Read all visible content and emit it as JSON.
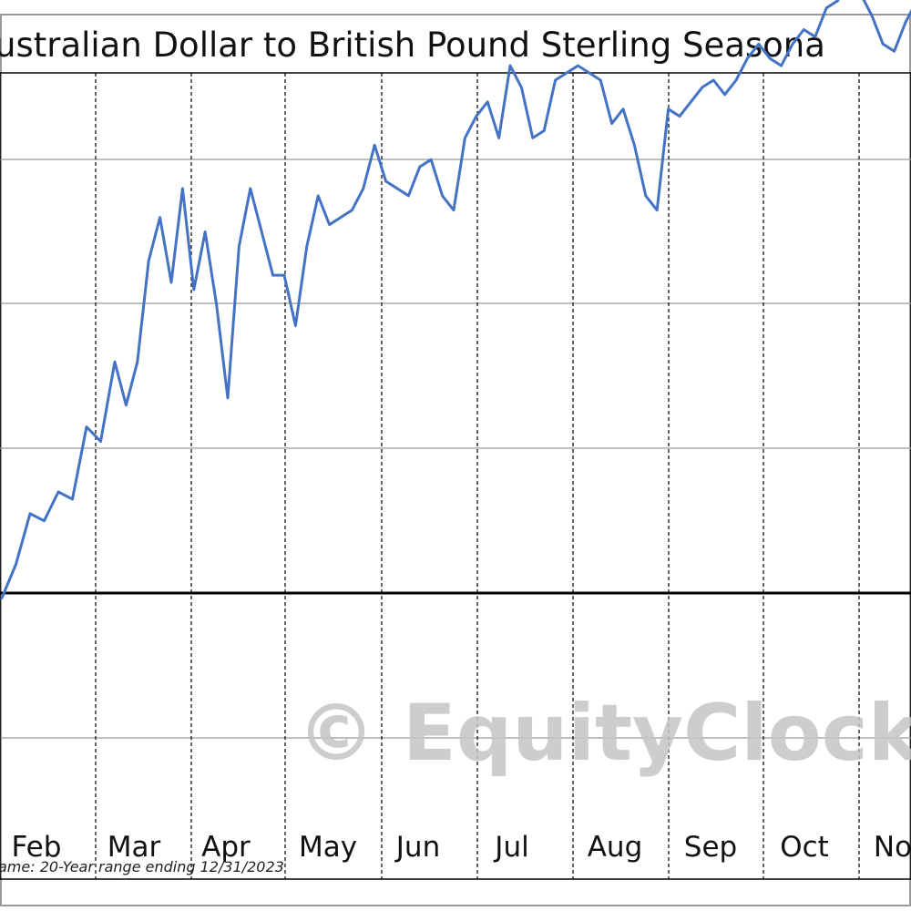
{
  "chart_data": {
    "type": "line",
    "title": "ustralian Dollar to British Pound Sterling Seasona",
    "months": [
      "Feb",
      "Mar",
      "Apr",
      "May",
      "Jun",
      "Jul",
      "Aug",
      "Sep",
      "Oct",
      "No"
    ],
    "timeframe_note": "ame: 20-Year range ending 12/31/2023",
    "watermark": "© EquityClock.co",
    "grid": true,
    "line_color": "#4472c4",
    "baseline_color": "#000000",
    "series": [
      {
        "points": [
          [
            0.0,
            -0.07
          ],
          [
            0.25,
            0.4
          ],
          [
            0.5,
            1.1
          ],
          [
            0.75,
            1.0
          ],
          [
            1.0,
            1.4
          ],
          [
            1.25,
            1.3
          ],
          [
            1.5,
            2.3
          ],
          [
            1.75,
            2.1
          ],
          [
            2.0,
            3.2
          ],
          [
            2.2,
            2.6
          ],
          [
            2.4,
            3.2
          ],
          [
            2.6,
            4.6
          ],
          [
            2.8,
            5.2
          ],
          [
            3.0,
            4.3
          ],
          [
            3.2,
            5.6
          ],
          [
            3.4,
            4.2
          ],
          [
            3.6,
            5.0
          ],
          [
            3.8,
            4.0
          ],
          [
            4.0,
            2.7
          ],
          [
            4.2,
            4.8
          ],
          [
            4.4,
            5.6
          ],
          [
            4.6,
            5.0
          ],
          [
            4.8,
            4.4
          ],
          [
            5.0,
            4.4
          ],
          [
            5.2,
            3.7
          ],
          [
            5.4,
            4.8
          ],
          [
            5.6,
            5.5
          ],
          [
            5.8,
            5.1
          ],
          [
            6.0,
            5.2
          ],
          [
            6.2,
            5.3
          ],
          [
            6.4,
            5.6
          ],
          [
            6.6,
            6.2
          ],
          [
            6.8,
            5.7
          ],
          [
            7.0,
            5.6
          ],
          [
            7.2,
            5.5
          ],
          [
            7.4,
            5.9
          ],
          [
            7.6,
            6.0
          ],
          [
            7.8,
            5.5
          ],
          [
            8.0,
            5.3
          ],
          [
            8.2,
            6.3
          ],
          [
            8.4,
            6.6
          ],
          [
            8.6,
            6.8
          ],
          [
            8.8,
            6.3
          ],
          [
            9.0,
            7.3
          ],
          [
            9.2,
            7.0
          ],
          [
            9.4,
            6.3
          ],
          [
            9.6,
            6.4
          ],
          [
            9.8,
            7.1
          ],
          [
            10.0,
            7.2
          ],
          [
            10.2,
            7.3
          ],
          [
            10.4,
            7.2
          ],
          [
            10.6,
            7.1
          ],
          [
            10.8,
            6.5
          ],
          [
            11.0,
            6.7
          ],
          [
            11.2,
            6.2
          ],
          [
            11.4,
            5.5
          ],
          [
            11.6,
            5.3
          ],
          [
            11.8,
            6.7
          ],
          [
            12.0,
            6.6
          ],
          [
            12.2,
            6.8
          ],
          [
            12.4,
            7.0
          ],
          [
            12.6,
            7.1
          ],
          [
            12.8,
            6.9
          ],
          [
            13.0,
            7.1
          ],
          [
            13.2,
            7.4
          ],
          [
            13.4,
            7.6
          ],
          [
            13.6,
            7.4
          ],
          [
            13.8,
            7.3
          ],
          [
            14.0,
            7.6
          ],
          [
            14.2,
            7.8
          ],
          [
            14.4,
            7.7
          ],
          [
            14.6,
            8.1
          ],
          [
            14.8,
            8.2
          ],
          [
            15.0,
            8.5
          ],
          [
            15.2,
            8.3
          ],
          [
            15.4,
            8.0
          ],
          [
            15.6,
            7.6
          ],
          [
            15.8,
            7.5
          ],
          [
            16.0,
            7.9
          ],
          [
            16.2,
            8.2
          ]
        ]
      }
    ]
  }
}
